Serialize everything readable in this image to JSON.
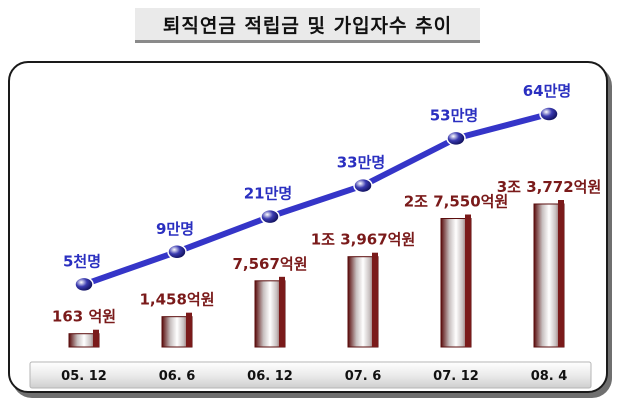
{
  "title": "퇴직연금 적립금 및 가입자수 추이",
  "chart_data": {
    "type": "bar",
    "title": "퇴직연금 적립금 및 가입자수 추이",
    "categories": [
      "05. 12",
      "06. 6",
      "06. 12",
      "07. 6",
      "07. 12",
      "08. 4"
    ],
    "series": [
      {
        "type": "bar",
        "unit": "억원",
        "values": [
          163,
          1458,
          7567,
          13967,
          27550,
          33772
        ],
        "labels": [
          "163 억원",
          "1,458억원",
          "7,567억원",
          "1조 3,967억원",
          "2조 7,550억원",
          "3조 3,772억원"
        ]
      },
      {
        "type": "line",
        "unit": "만명",
        "values": [
          0.5,
          9,
          21,
          33,
          53,
          64
        ],
        "labels": [
          "5천명",
          "9만명",
          "21만명",
          "33만명",
          "53만명",
          "64만명"
        ]
      }
    ],
    "colors": {
      "bar": "#7a1a1a",
      "line": "#3535c8",
      "marker": "#1a1a8a"
    }
  }
}
